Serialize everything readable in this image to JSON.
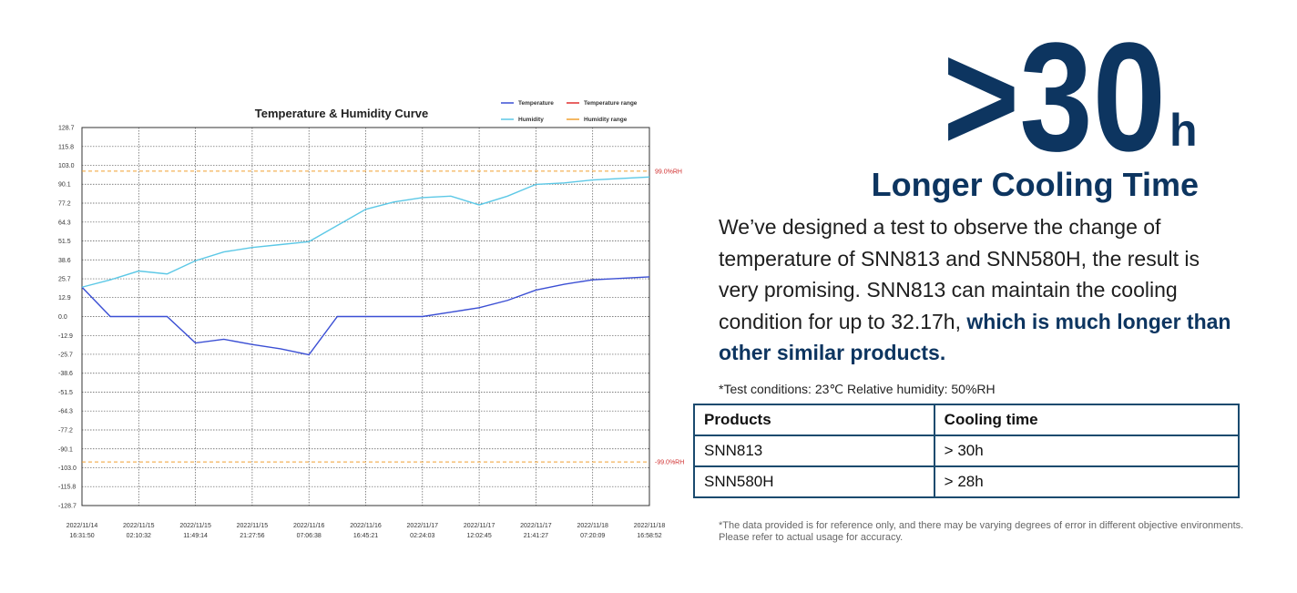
{
  "chart_data": {
    "type": "line",
    "title": "Temperature & Humidity Curve",
    "x": [
      "2022/11/14 16:31:50",
      "2022/11/14 21:21:11",
      "2022/11/15 02:10:32",
      "2022/11/15 06:59:53",
      "2022/11/15 11:49:14",
      "2022/11/15 16:38:35",
      "2022/11/15 21:27:56",
      "2022/11/16 02:17:17",
      "2022/11/16 07:06:38",
      "2022/11/16 11:55:59",
      "2022/11/16 16:45:21",
      "2022/11/16 21:34:42",
      "2022/11/17 02:24:03",
      "2022/11/17 07:13:24",
      "2022/11/17 12:02:45",
      "2022/11/17 16:52:06",
      "2022/11/17 21:41:27",
      "2022/11/18 02:30:48",
      "2022/11/18 07:20:09",
      "2022/11/18 12:09:30",
      "2022/11/18 16:58:52"
    ],
    "series": [
      {
        "name": "Temperature",
        "color": "#3b4fd4",
        "values": [
          20,
          0,
          0,
          0,
          -18,
          -15.5,
          -19,
          -22,
          -26,
          0,
          0,
          0,
          0,
          3,
          6,
          11,
          18,
          22,
          25,
          26,
          27
        ]
      },
      {
        "name": "Humidity",
        "color": "#5cc8e6",
        "values": [
          20,
          25,
          31,
          29,
          38,
          44,
          47,
          49,
          51,
          62,
          73,
          78,
          81,
          82,
          76,
          82,
          90,
          91,
          93,
          94,
          95
        ]
      }
    ],
    "range_items": [
      {
        "name": "Temperature range",
        "color": "#e03030"
      },
      {
        "name": "Humidity range",
        "color": "#f0a030"
      }
    ],
    "reference_lines": [
      {
        "value": 99,
        "label": "99.0%RH"
      },
      {
        "value": -99,
        "label": "-99.0%RH"
      }
    ],
    "xlim": [
      "2022/11/14 16:31:50",
      "2022/11/18 16:58:52"
    ],
    "xticks": [
      {
        "value": "2022/11/14 16:31:50",
        "label": [
          "2022/11/14",
          "16:31:50"
        ]
      },
      {
        "value": "2022/11/15 02:10:32",
        "label": [
          "2022/11/15",
          "02:10:32"
        ]
      },
      {
        "value": "2022/11/15 11:49:14",
        "label": [
          "2022/11/15",
          "11:49:14"
        ]
      },
      {
        "value": "2022/11/15 21:27:56",
        "label": [
          "2022/11/15",
          "21:27:56"
        ]
      },
      {
        "value": "2022/11/16 07:06:38",
        "label": [
          "2022/11/16",
          "07:06:38"
        ]
      },
      {
        "value": "2022/11/16 16:45:21",
        "label": [
          "2022/11/16",
          "16:45:21"
        ]
      },
      {
        "value": "2022/11/17 02:24:03",
        "label": [
          "2022/11/17",
          "02:24:03"
        ]
      },
      {
        "value": "2022/11/17 12:02:45",
        "label": [
          "2022/11/17",
          "12:02:45"
        ]
      },
      {
        "value": "2022/11/17 21:41:27",
        "label": [
          "2022/11/17",
          "21:41:27"
        ]
      },
      {
        "value": "2022/11/18 07:20:09",
        "label": [
          "2022/11/18",
          "07:20:09"
        ]
      },
      {
        "value": "2022/11/18 16:58:52",
        "label": [
          "2022/11/18",
          "16:58:52"
        ]
      }
    ],
    "ylim": [
      -128.7,
      128.7
    ],
    "yticks": [
      128.7,
      115.8,
      {
        "value": 103,
        "label": "103.0"
      },
      90.1,
      77.2,
      64.3,
      51.5,
      38.6,
      25.7,
      12.9,
      {
        "value": 0,
        "label": "0.0"
      },
      -12.9,
      -25.7,
      -38.6,
      -51.5,
      -64.3,
      -77.2,
      -90.1,
      {
        "value": -103,
        "label": "-103.0"
      },
      -115.8,
      -128.7
    ],
    "grid": true
  },
  "headline": {
    "big": ">30",
    "unit": "h",
    "title": "Longer Cooling Time"
  },
  "paragraph": {
    "text": "We’ve designed a test to observe the change of temperature of SNN813 and SNN580H, the result is very promising. SNN813 can maintain the cooling condition for up to 32.17h, ",
    "bold": "which is much longer than other similar products."
  },
  "note": "*Test conditions: 23℃ Relative humidity: 50%RH",
  "table": {
    "header": [
      "Products",
      "Cooling time"
    ],
    "rows": [
      [
        "SNN813",
        "> 30h"
      ],
      [
        "SNN580H",
        "> 28h"
      ]
    ]
  },
  "footnote": "*The data provided is for reference only, and there may be varying degrees of error in different objective environments. Please refer to actual usage for accuracy."
}
